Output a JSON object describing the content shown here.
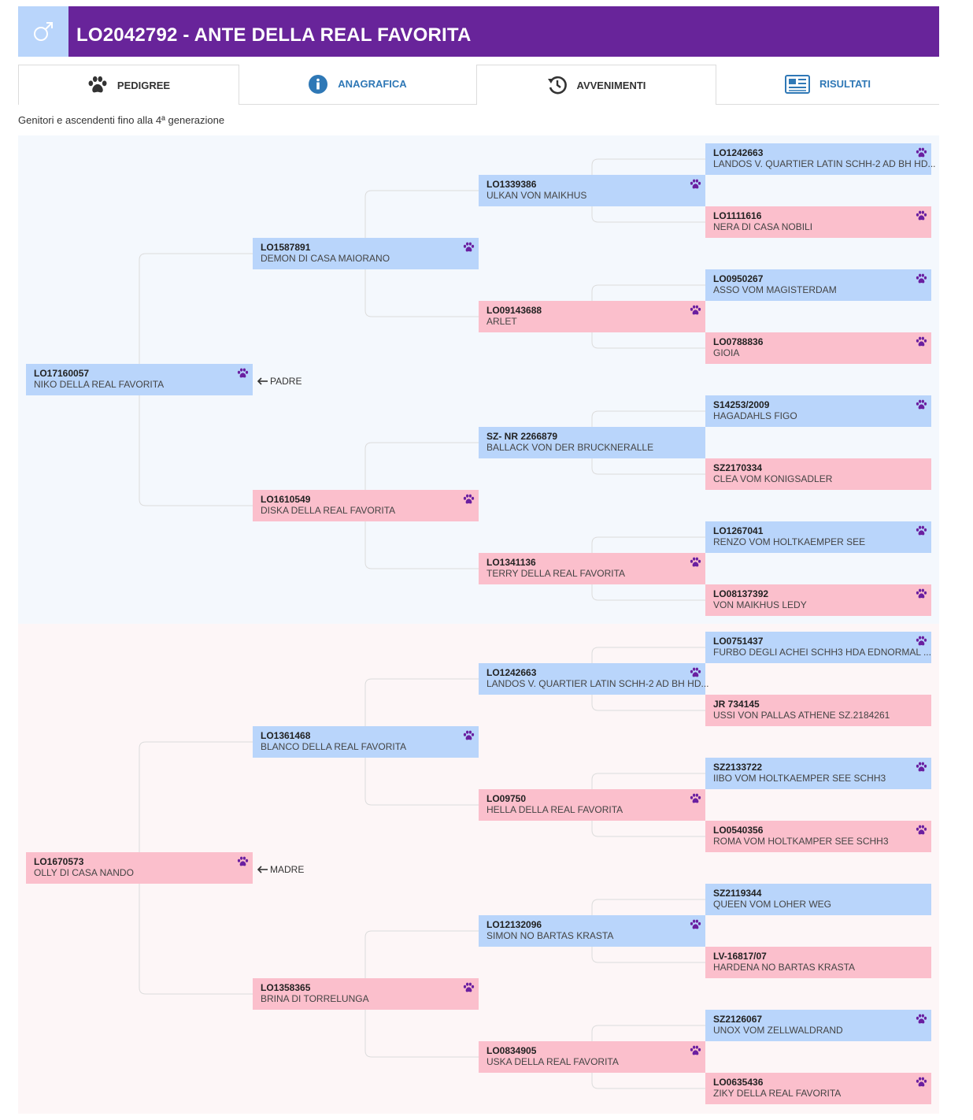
{
  "header": {
    "title": "LO2042792 - ANTE DELLA REAL FAVORITA",
    "sex_icon": "male-icon",
    "color": "#68249a"
  },
  "tabs": [
    {
      "label": "PEDIGREE",
      "icon": "paw-icon"
    },
    {
      "label": "ANAGRAFICA",
      "icon": "info-icon"
    },
    {
      "label": "AVVENIMENTI",
      "icon": "history-icon"
    },
    {
      "label": "RISULTATI",
      "icon": "newspaper-icon"
    }
  ],
  "subtitle": "Genitori e ascendenti fino alla 4ª generazione",
  "labels": {
    "sire": "PADRE",
    "dam": "MADRE"
  },
  "colors": {
    "male": "#b9d5fb",
    "female": "#fbbfcc",
    "paw": "#6a1fa0"
  },
  "pedigree": [
    {
      "code": "LO17160057",
      "name": "NIKO DELLA REAL FAVORITA",
      "sex": "m",
      "paw": true
    },
    {
      "code": "LO1670573",
      "name": "OLLY DI CASA NANDO",
      "sex": "f",
      "paw": true
    },
    {
      "code": "LO1587891",
      "name": "DEMON DI CASA MAIORANO",
      "sex": "m",
      "paw": true
    },
    {
      "code": "LO1610549",
      "name": "DISKA DELLA REAL FAVORITA",
      "sex": "f",
      "paw": true
    },
    {
      "code": "LO1361468",
      "name": "BLANCO DELLA REAL FAVORITA",
      "sex": "m",
      "paw": true
    },
    {
      "code": "LO1358365",
      "name": "BRINA DI TORRELUNGA",
      "sex": "f",
      "paw": true
    },
    {
      "code": "LO1339386",
      "name": "ULKAN VON MAIKHUS",
      "sex": "m",
      "paw": true
    },
    {
      "code": "LO09143688",
      "name": "ARLET",
      "sex": "f",
      "paw": true
    },
    {
      "code": "SZ- NR 2266879",
      "name": "BALLACK VON DER BRUCKNERALLE",
      "sex": "m",
      "paw": false
    },
    {
      "code": "LO1341136",
      "name": "TERRY DELLA REAL FAVORITA",
      "sex": "f",
      "paw": true
    },
    {
      "code": "LO1242663",
      "name": "LANDOS V. QUARTIER LATIN SCHH-2 AD BH HD...",
      "sex": "m",
      "paw": true
    },
    {
      "code": "LO09750",
      "name": "HELLA DELLA REAL FAVORITA",
      "sex": "f",
      "paw": true
    },
    {
      "code": "LO12132096",
      "name": "SIMON NO BARTAS KRASTA",
      "sex": "m",
      "paw": true
    },
    {
      "code": "LO0834905",
      "name": "USKA DELLA REAL FAVORITA",
      "sex": "f",
      "paw": true
    },
    {
      "code": "LO1242663",
      "name": "LANDOS V. QUARTIER LATIN SCHH-2 AD BH HD...",
      "sex": "m",
      "paw": true
    },
    {
      "code": "LO1111616",
      "name": "NERA DI CASA NOBILI",
      "sex": "f",
      "paw": true
    },
    {
      "code": "LO0950267",
      "name": "ASSO VOM MAGISTERDAM",
      "sex": "m",
      "paw": true
    },
    {
      "code": "LO0788836",
      "name": "GIOIA",
      "sex": "f",
      "paw": true
    },
    {
      "code": "S14253/2009",
      "name": "HAGADAHLS FIGO",
      "sex": "m",
      "paw": true
    },
    {
      "code": "SZ2170334",
      "name": "CLEA VOM KONIGSADLER",
      "sex": "f",
      "paw": false
    },
    {
      "code": "LO1267041",
      "name": "RENZO VOM HOLTKAEMPER SEE",
      "sex": "m",
      "paw": true
    },
    {
      "code": "LO08137392",
      "name": "VON MAIKHUS LEDY",
      "sex": "f",
      "paw": true
    },
    {
      "code": "LO0751437",
      "name": "FURBO DEGLI ACHEI SCHH3 HDA EDNORMAL ...",
      "sex": "m",
      "paw": true
    },
    {
      "code": "JR 734145",
      "name": "USSI VON PALLAS ATHENE SZ.2184261",
      "sex": "f",
      "paw": false
    },
    {
      "code": "SZ2133722",
      "name": "IIBO VOM HOLTKAEMPER SEE SCHH3",
      "sex": "m",
      "paw": true
    },
    {
      "code": "LO0540356",
      "name": "ROMA VOM HOLTKAMPER SEE SCHH3",
      "sex": "f",
      "paw": true
    },
    {
      "code": "SZ2119344",
      "name": "QUEEN VOM LOHER WEG",
      "sex": "m",
      "paw": false
    },
    {
      "code": "LV-16817/07",
      "name": "HARDENA NO BARTAS KRASTA",
      "sex": "f",
      "paw": false
    },
    {
      "code": "SZ2126067",
      "name": "UNOX VOM ZELLWALDRAND",
      "sex": "m",
      "paw": true
    },
    {
      "code": "LO0635436",
      "name": "ZIKY DELLA REAL FAVORITA",
      "sex": "f",
      "paw": true
    }
  ]
}
